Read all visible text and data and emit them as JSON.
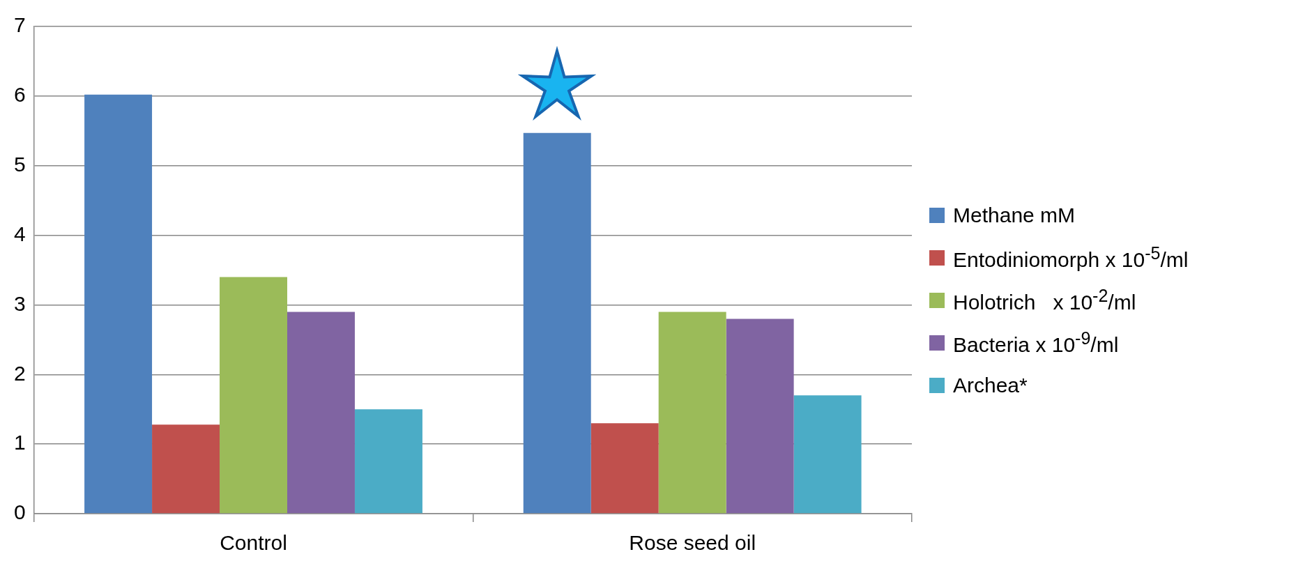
{
  "chart_data": {
    "type": "bar",
    "categories": [
      "Control",
      "Rose seed oil"
    ],
    "series": [
      {
        "name": "Methane mM",
        "color": "#4f81bd",
        "values": [
          6.02,
          5.47
        ]
      },
      {
        "name": "Entodiniomorph x 10$^{-5}$/ml",
        "color": "#c0504d",
        "values": [
          1.28,
          1.3
        ]
      },
      {
        "name": "Holotrich   x 10$^{-2}$/ml",
        "color": "#9bbb59",
        "values": [
          3.4,
          2.9
        ]
      },
      {
        "name": "Bacteria x 10$^{-9}$/ml",
        "color": "#8064a2",
        "values": [
          2.9,
          2.8
        ]
      },
      {
        "name": "Archea*",
        "color": "#4bacc6",
        "values": [
          1.5,
          1.7
        ]
      }
    ],
    "ylim": [
      0,
      7
    ],
    "yticks": [
      0,
      1,
      2,
      3,
      4,
      5,
      6,
      7
    ],
    "grid": "y",
    "legend": "right"
  }
}
